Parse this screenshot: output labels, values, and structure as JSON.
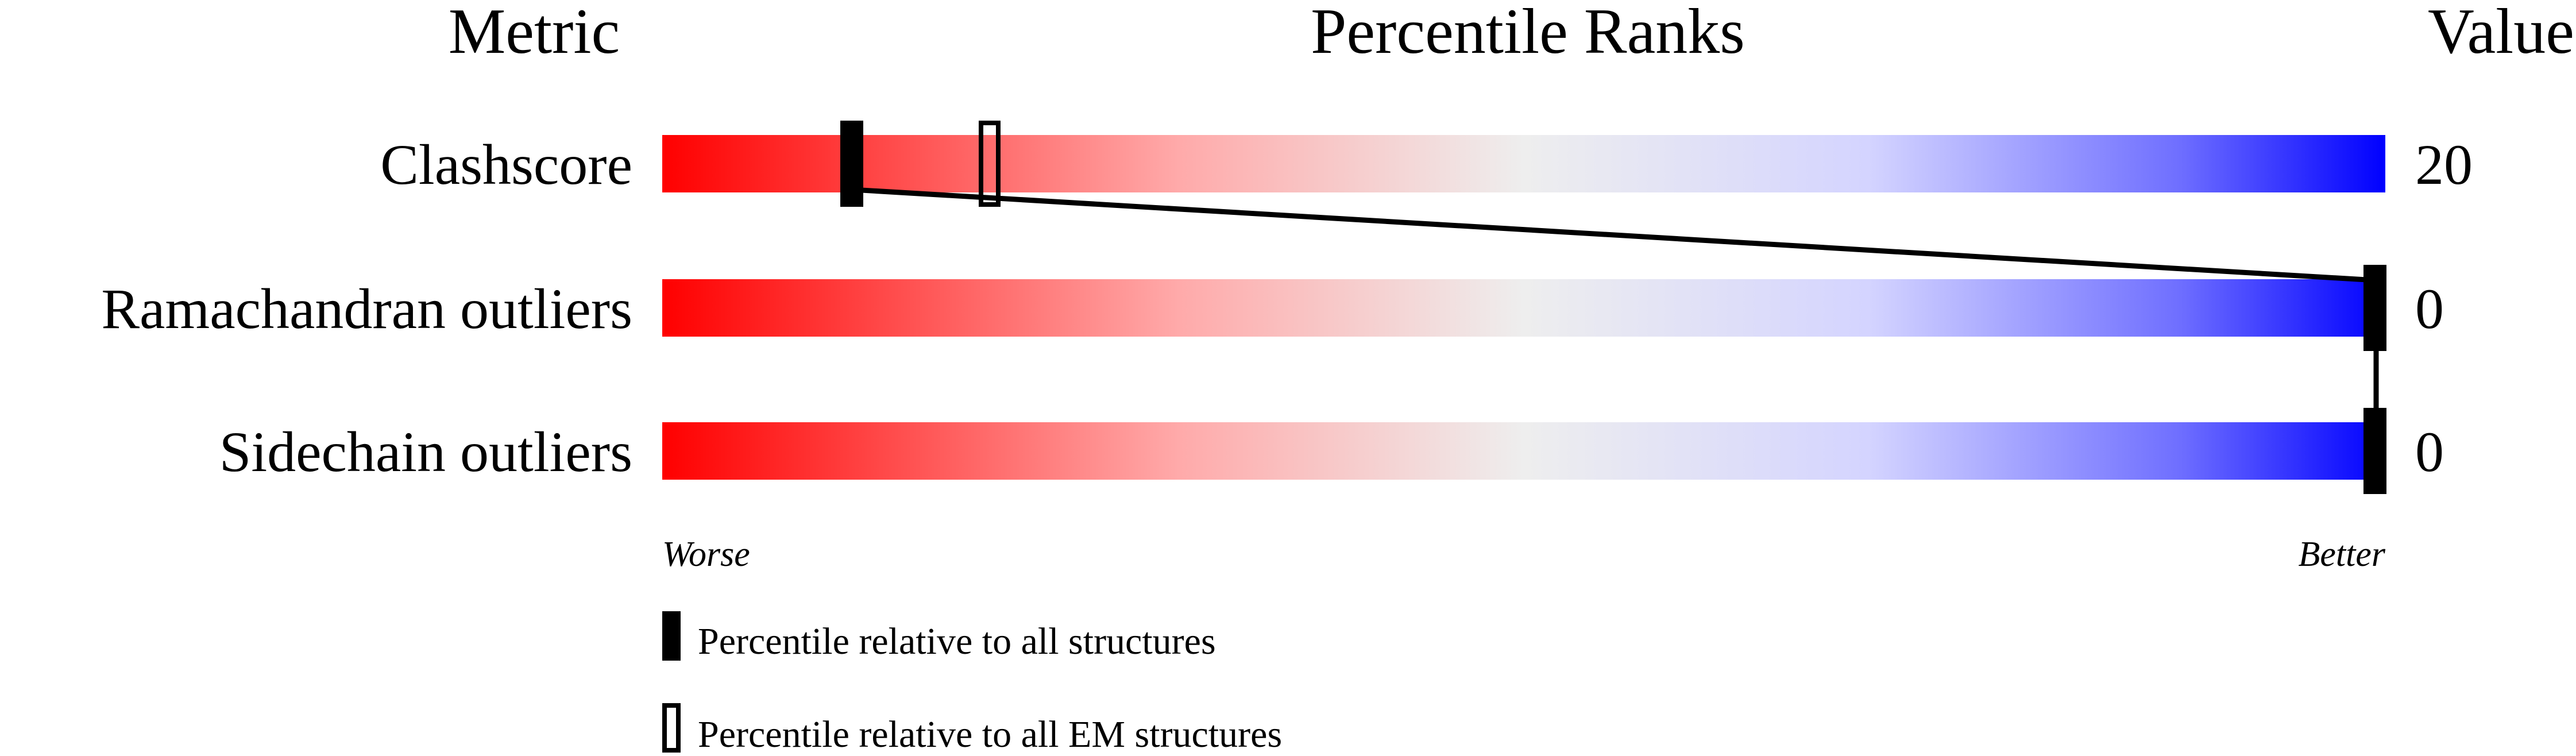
{
  "chart_data": {
    "type": "percentile-slider",
    "headers": {
      "metric": "Metric",
      "title": "Percentile Ranks",
      "value": "Value"
    },
    "axis": {
      "min": 0,
      "max": 100,
      "left_label": "Worse",
      "right_label": "Better"
    },
    "gradient_colors": [
      "#ff0000",
      "#eeeeee",
      "#0000ff"
    ],
    "metrics": [
      {
        "name": "Clashscore",
        "value": "20",
        "percentile_all": 11,
        "percentile_em": 19
      },
      {
        "name": "Ramachandran outliers",
        "value": "0",
        "percentile_all": 100,
        "percentile_em": 100
      },
      {
        "name": "Sidechain outliers",
        "value": "0",
        "percentile_all": 100,
        "percentile_em": 100
      }
    ],
    "legend": [
      {
        "marker": "filled",
        "label": "Percentile relative to all structures"
      },
      {
        "marker": "open",
        "label": "Percentile relative to all EM structures"
      }
    ]
  }
}
